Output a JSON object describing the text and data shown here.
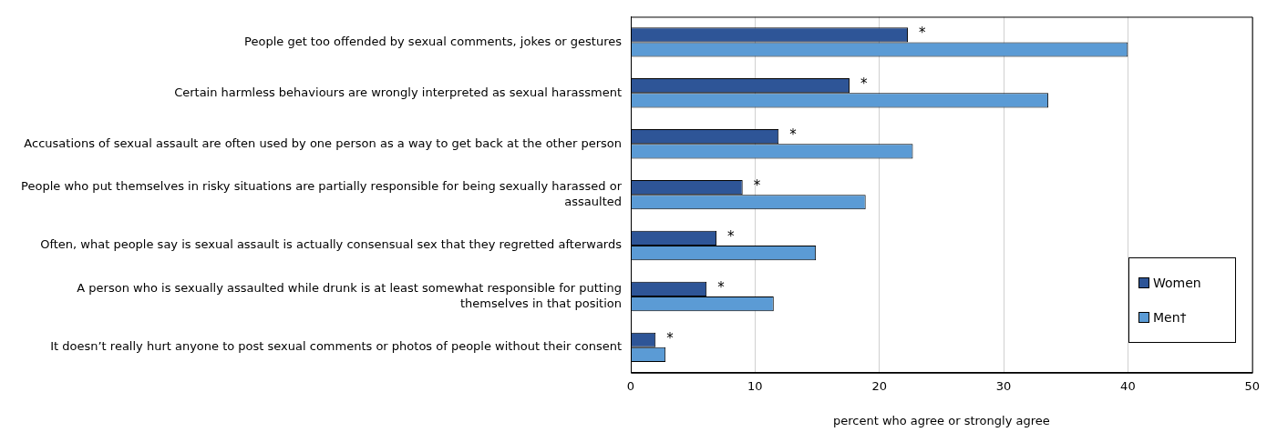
{
  "chart_data": {
    "type": "bar",
    "orientation": "horizontal",
    "xlabel": "percent who agree or strongly agree",
    "categories": [
      "People get too offended by sexual comments, jokes or gestures",
      "Certain harmless behaviours are wrongly interpreted as sexual harassment",
      "Accusations of sexual assault are often used by one person as a way to get back at the other person",
      "People who put themselves in risky situations are partially responsible for being sexually harassed or assaulted",
      "Often, what people say is sexual assault is actually consensual sex that they regretted afterwards",
      "A person who is sexually assaulted while drunk is at least somewhat responsible for putting themselves in that position",
      "It doesn’t really hurt anyone to post sexual comments or photos of people without their consent"
    ],
    "series": [
      {
        "name": "Women",
        "color": "#2e5597",
        "values": [
          22.3,
          17.6,
          11.9,
          9.0,
          6.9,
          6.1,
          2.0
        ]
      },
      {
        "name": "Men†",
        "color": "#5b9bd5",
        "values": [
          40.0,
          33.6,
          22.7,
          18.9,
          14.9,
          11.5,
          2.8
        ]
      }
    ],
    "xlim": [
      0,
      50
    ],
    "xticks": [
      0,
      10,
      20,
      30,
      40,
      50
    ],
    "grid": "x",
    "legend": "bottom right",
    "annotations": [
      {
        "text": "*",
        "x": 22.3,
        "y": "People get too offended by sexual comments, jokes or gestures"
      },
      {
        "text": "*",
        "x": 17.6,
        "y": "Certain harmless behaviours are wrongly interpreted as sexual harassment"
      },
      {
        "text": "*",
        "x": 11.9,
        "y": "Accusations of sexual assault are often used by one person as a way to get back at the other person"
      },
      {
        "text": "*",
        "x": 9.0,
        "y": "People who put themselves in risky situations are partially responsible for being sexually harassed or assaulted"
      },
      {
        "text": "*",
        "x": 6.9,
        "y": "Often, what people say is sexual assault is actually consensual sex that they regretted afterwards"
      },
      {
        "text": "*",
        "x": 6.1,
        "y": "A person who is sexually assaulted while drunk is at least somewhat responsible for putting themselves in that position"
      },
      {
        "text": "*",
        "x": 2.0,
        "y": "It doesn’t really hurt anyone to post sexual comments or photos of people without their consent"
      }
    ]
  }
}
